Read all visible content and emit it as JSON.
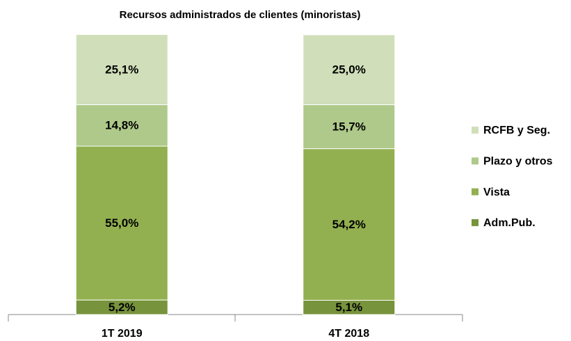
{
  "chart_data": {
    "type": "stacked_bar",
    "title": "Recursos administrados de clientes (minoristas)",
    "categories": [
      "1T 2019",
      "4T 2018"
    ],
    "series": [
      {
        "name": "Adm.Pub.",
        "color": "#77933c",
        "values": [
          5.2,
          5.1
        ],
        "value_labels": [
          "5,2%",
          "5,1%"
        ]
      },
      {
        "name": "Vista",
        "color": "#92b050",
        "values": [
          55.0,
          54.2
        ],
        "value_labels": [
          "55,0%",
          "54,2%"
        ]
      },
      {
        "name": "Plazo y otros",
        "color": "#aec98a",
        "values": [
          14.8,
          15.7
        ],
        "value_labels": [
          "14,8%",
          "15,7%"
        ]
      },
      {
        "name": "RCFB y Seg.",
        "color": "#d0dfb9",
        "values": [
          25.1,
          25.0
        ],
        "value_labels": [
          "25,1%",
          "25,0%"
        ]
      }
    ],
    "ylim": [
      0,
      100
    ],
    "legend": "right"
  }
}
